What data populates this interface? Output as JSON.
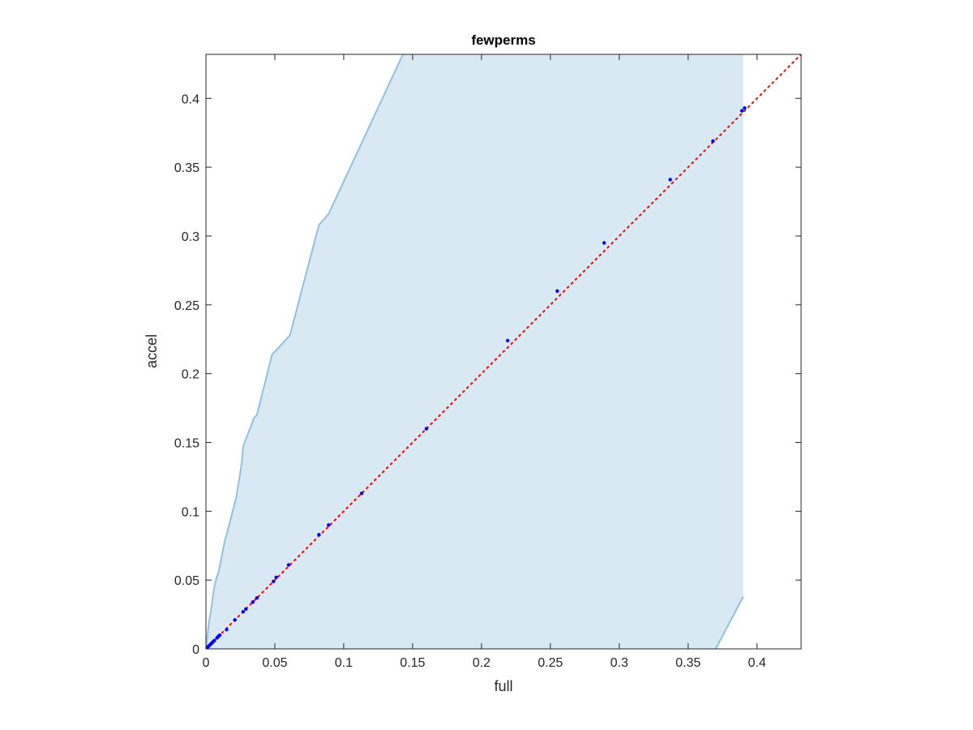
{
  "chart_data": {
    "type": "scatter",
    "title": "fewperms",
    "xlabel": "full",
    "ylabel": "accel",
    "xlim": [
      0,
      0.432
    ],
    "ylim": [
      0,
      0.432
    ],
    "xticks": [
      0,
      0.05,
      0.1,
      0.15,
      0.2,
      0.25,
      0.3,
      0.35,
      0.4
    ],
    "yticks": [
      0,
      0.05,
      0.1,
      0.15,
      0.2,
      0.25,
      0.3,
      0.35,
      0.4
    ],
    "xtick_labels": [
      "0",
      "0.05",
      "0.1",
      "0.15",
      "0.2",
      "0.25",
      "0.3",
      "0.35",
      "0.4"
    ],
    "ytick_labels": [
      "0",
      "0.05",
      "0.1",
      "0.15",
      "0.2",
      "0.25",
      "0.3",
      "0.35",
      "0.4"
    ],
    "grid": false,
    "colors": {
      "points": "#0000ff",
      "identity_line": "#ff0000",
      "band_fill": "#d9e9f4",
      "band_edge": "#8fc1e0",
      "axes": "#262626"
    },
    "identity_line": {
      "from": [
        0,
        0
      ],
      "to": [
        0.432,
        0.432
      ],
      "style": "dotted"
    },
    "band": {
      "upper": [
        [
          0,
          0
        ],
        [
          0.002,
          0.018
        ],
        [
          0.004,
          0.03
        ],
        [
          0.006,
          0.045
        ],
        [
          0.008,
          0.053
        ],
        [
          0.009,
          0.055
        ],
        [
          0.012,
          0.07
        ],
        [
          0.014,
          0.08
        ],
        [
          0.015,
          0.083
        ],
        [
          0.022,
          0.11
        ],
        [
          0.026,
          0.135
        ],
        [
          0.027,
          0.147
        ],
        [
          0.03,
          0.155
        ],
        [
          0.035,
          0.168
        ],
        [
          0.037,
          0.17
        ],
        [
          0.048,
          0.214
        ],
        [
          0.052,
          0.218
        ],
        [
          0.061,
          0.228
        ],
        [
          0.082,
          0.308
        ],
        [
          0.089,
          0.316
        ],
        [
          0.143,
          0.432
        ]
      ],
      "right_x": 0.39,
      "lower": [
        [
          0.37,
          0
        ],
        [
          0.39,
          0.038
        ]
      ]
    },
    "points": {
      "x": [
        0.0005,
        0.001,
        0.0015,
        0.002,
        0.003,
        0.004,
        0.005,
        0.006,
        0.008,
        0.009,
        0.01,
        0.015,
        0.021,
        0.027,
        0.029,
        0.034,
        0.037,
        0.049,
        0.051,
        0.06,
        0.082,
        0.089,
        0.113,
        0.16,
        0.219,
        0.255,
        0.289,
        0.337,
        0.368,
        0.389,
        0.391
      ],
      "y": [
        0.0005,
        0.001,
        0.0015,
        0.002,
        0.003,
        0.004,
        0.005,
        0.006,
        0.008,
        0.009,
        0.01,
        0.014,
        0.021,
        0.027,
        0.029,
        0.034,
        0.037,
        0.049,
        0.052,
        0.061,
        0.083,
        0.09,
        0.113,
        0.16,
        0.224,
        0.26,
        0.295,
        0.341,
        0.369,
        0.391,
        0.393
      ]
    }
  }
}
